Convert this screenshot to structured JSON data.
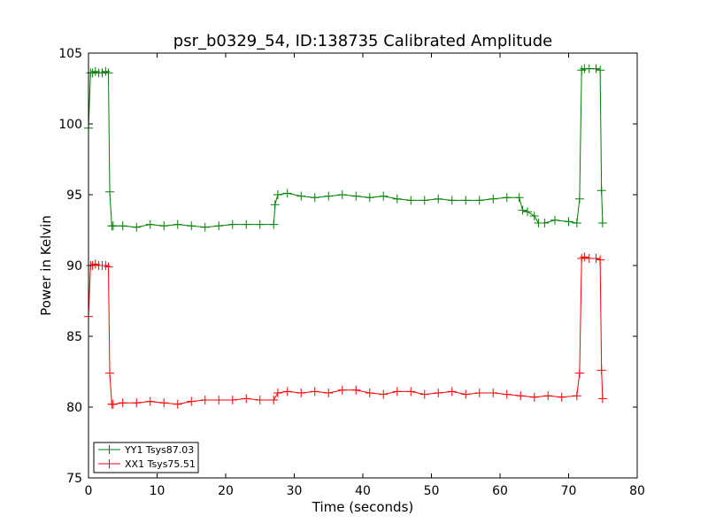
{
  "chart_data": {
    "type": "line",
    "title": "psr_b0329_54, ID:138735 Calibrated Amplitude",
    "xlabel": "Time (seconds)",
    "ylabel": "Power in Kelvin",
    "xlim": [
      0,
      80
    ],
    "ylim": [
      75,
      105
    ],
    "x_ticks": [
      "0",
      "10",
      "20",
      "30",
      "40",
      "50",
      "60",
      "70",
      "80"
    ],
    "y_ticks": [
      "75",
      "80",
      "85",
      "90",
      "95",
      "100",
      "105"
    ],
    "grid": false,
    "legend_position": "lower-left",
    "series": [
      {
        "name": "YY1 Tsys87.03",
        "color": "#008000",
        "marker": "plus",
        "x": [
          0.0,
          0.3,
          0.6,
          1.0,
          1.5,
          2.0,
          2.5,
          2.9,
          3.1,
          3.4,
          3.6,
          5,
          7,
          9,
          11,
          13,
          15,
          17,
          19,
          21,
          23,
          25,
          27.0,
          27.2,
          27.6,
          29,
          31,
          33,
          35,
          37,
          39,
          41,
          43,
          45,
          47,
          49,
          51,
          53,
          55,
          57,
          59,
          61,
          62.8,
          63.3,
          64.0,
          65.0,
          65.6,
          66.5,
          68,
          70,
          71.2,
          71.6,
          71.9,
          72.3,
          73,
          74,
          74.6,
          74.8,
          74.95
        ],
        "values": [
          99.7,
          103.6,
          103.6,
          103.7,
          103.6,
          103.6,
          103.7,
          103.6,
          95.2,
          92.8,
          92.8,
          92.8,
          92.7,
          92.9,
          92.8,
          92.9,
          92.8,
          92.7,
          92.8,
          92.9,
          92.9,
          92.9,
          92.9,
          94.3,
          95.0,
          95.1,
          94.9,
          94.8,
          94.9,
          95.0,
          94.9,
          94.8,
          94.9,
          94.7,
          94.6,
          94.6,
          94.7,
          94.6,
          94.6,
          94.6,
          94.7,
          94.8,
          94.8,
          93.9,
          93.8,
          93.5,
          93.0,
          93.0,
          93.2,
          93.1,
          93.0,
          94.7,
          103.8,
          103.9,
          103.9,
          103.9,
          103.8,
          95.3,
          93.0
        ]
      },
      {
        "name": "XX1 Tsys75.51",
        "color": "#ff0000",
        "marker": "plus",
        "x": [
          0.0,
          0.3,
          0.6,
          1.0,
          1.5,
          2.0,
          2.5,
          2.9,
          3.1,
          3.4,
          3.6,
          5,
          7,
          9,
          11,
          13,
          15,
          17,
          19,
          21,
          23,
          25,
          27.0,
          27.6,
          29,
          31,
          33,
          35,
          37,
          39,
          41,
          43,
          45,
          47,
          49,
          51,
          53,
          55,
          57,
          59,
          61,
          63,
          65,
          67,
          69,
          71.2,
          71.6,
          71.9,
          72.3,
          73,
          74,
          74.6,
          74.8,
          74.95
        ],
        "values": [
          86.4,
          90.0,
          90.0,
          90.1,
          90.0,
          90.0,
          90.0,
          89.9,
          82.4,
          80.2,
          80.2,
          80.3,
          80.3,
          80.4,
          80.3,
          80.2,
          80.4,
          80.5,
          80.5,
          80.5,
          80.6,
          80.5,
          80.5,
          81.0,
          81.1,
          81.0,
          81.1,
          81.0,
          81.2,
          81.2,
          81.0,
          80.9,
          81.1,
          81.1,
          80.9,
          81.0,
          81.1,
          80.9,
          81.0,
          81.0,
          80.9,
          80.8,
          80.7,
          80.8,
          80.7,
          80.8,
          82.4,
          90.5,
          90.6,
          90.5,
          90.5,
          90.4,
          82.6,
          80.6
        ]
      }
    ]
  }
}
